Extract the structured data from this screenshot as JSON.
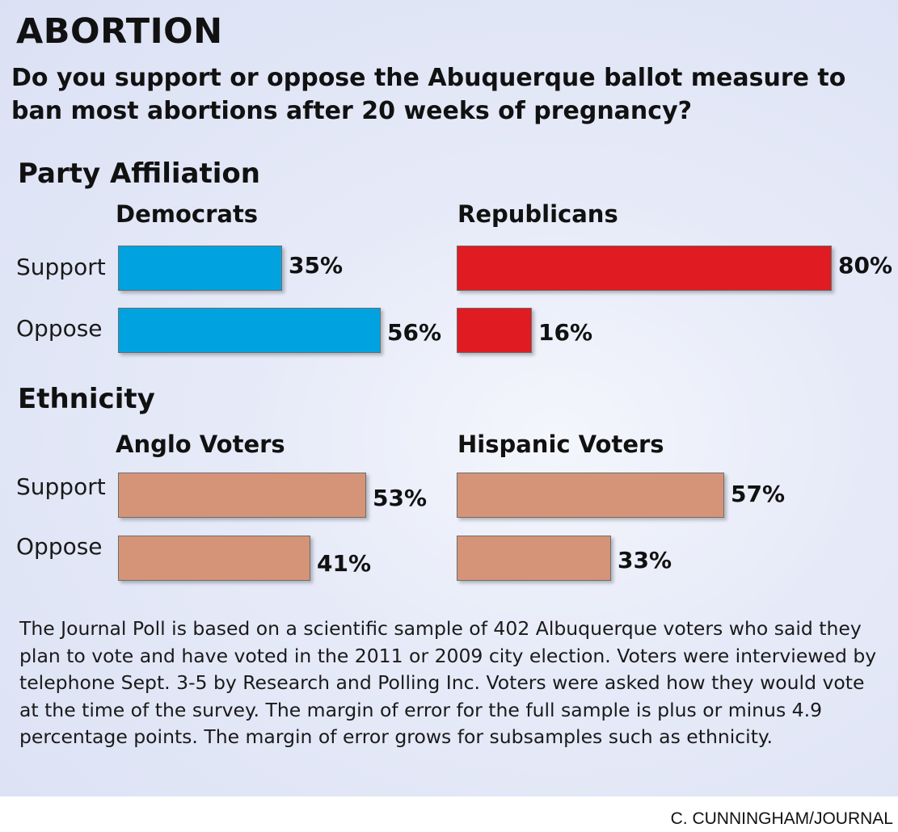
{
  "title": "ABORTION",
  "subtitle": "Do you support or oppose the Abuquerque ballot measure to ban most abortions after 20 weeks of pregnancy?",
  "footnote": "The Journal Poll is based on a scientific sample of 402 Albuquerque voters who said they plan to vote and have voted in the 2011 or 2009 city election. Voters were interviewed by telephone Sept. 3-5 by Research and Polling Inc. Voters were asked how they would vote at the time of the survey. The margin of error for the full sample is plus or minus 4.9 percentage points. The margin of error grows for subsamples such as ethnicity.",
  "credit": "C. CUNNINGHAM/JOURNAL",
  "sections": [
    {
      "title": "Party Affiliation"
    },
    {
      "title": "Ethnicity"
    }
  ],
  "chart_data": [
    {
      "type": "bar",
      "orientation": "horizontal",
      "section": "Party Affiliation",
      "title": "Democrats",
      "categories": [
        "Support",
        "Oppose"
      ],
      "values": [
        35,
        56
      ],
      "value_labels": [
        "35%",
        "56%"
      ],
      "unit": "%",
      "xlim": [
        0,
        80
      ],
      "color": "#00a3df"
    },
    {
      "type": "bar",
      "orientation": "horizontal",
      "section": "Party Affiliation",
      "title": "Republicans",
      "categories": [
        "Support",
        "Oppose"
      ],
      "values": [
        80,
        16
      ],
      "value_labels": [
        "80%",
        "16%"
      ],
      "unit": "%",
      "xlim": [
        0,
        80
      ],
      "color": "#e01b22"
    },
    {
      "type": "bar",
      "orientation": "horizontal",
      "section": "Ethnicity",
      "title": "Anglo Voters",
      "categories": [
        "Support",
        "Oppose"
      ],
      "values": [
        53,
        41
      ],
      "value_labels": [
        "53%",
        "41%"
      ],
      "unit": "%",
      "xlim": [
        0,
        80
      ],
      "color": "#d59478"
    },
    {
      "type": "bar",
      "orientation": "horizontal",
      "section": "Ethnicity",
      "title": "Hispanic Voters",
      "categories": [
        "Support",
        "Oppose"
      ],
      "values": [
        57,
        33
      ],
      "value_labels": [
        "57%",
        "33%"
      ],
      "unit": "%",
      "xlim": [
        0,
        80
      ],
      "color": "#d59478"
    }
  ]
}
